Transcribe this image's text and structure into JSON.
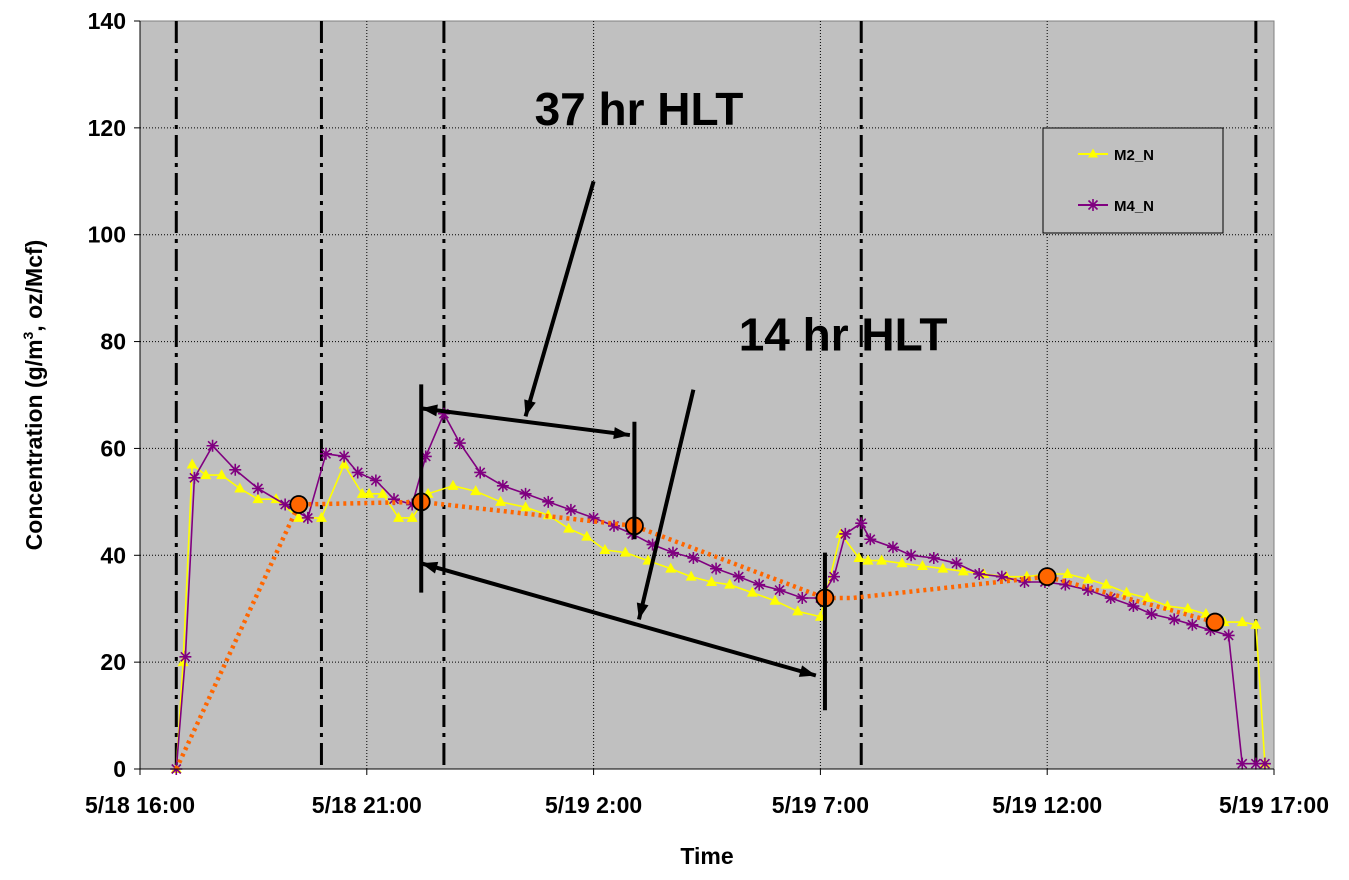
{
  "chart_data": {
    "type": "line",
    "title": "",
    "xlabel": "Time",
    "ylabel": "Concentration (g/m",
    "ylabel_sup": "3",
    "ylabel_tail": ", oz/Mcf)",
    "ylim": [
      0,
      140
    ],
    "y_ticks": [
      0,
      20,
      40,
      60,
      80,
      100,
      120,
      140
    ],
    "xlim": [
      0,
      25
    ],
    "x_ticks": [
      {
        "x": 0,
        "label": "5/18 16:00"
      },
      {
        "x": 5,
        "label": "5/18 21:00"
      },
      {
        "x": 10,
        "label": "5/19 2:00"
      },
      {
        "x": 15,
        "label": "5/19 7:00"
      },
      {
        "x": 20,
        "label": "5/19 12:00"
      },
      {
        "x": 25,
        "label": "5/19 17:00"
      }
    ],
    "grid": true,
    "legend_position": "top-right",
    "series": [
      {
        "name": "M2_N",
        "color": "#ffff00",
        "marker": "triangle",
        "x": [
          0.8,
          0.95,
          1.15,
          1.45,
          1.8,
          2.2,
          2.6,
          3.0,
          3.5,
          4.0,
          4.5,
          4.9,
          5.05,
          5.35,
          5.7,
          6.0,
          6.35,
          6.9,
          7.4,
          7.95,
          8.5,
          9.0,
          9.45,
          9.85,
          10.25,
          10.7,
          11.2,
          11.7,
          12.15,
          12.6,
          13.0,
          13.5,
          14.0,
          14.5,
          15.0,
          15.45,
          15.85,
          16.05,
          16.35,
          16.8,
          17.25,
          17.7,
          18.15,
          18.6,
          19.1,
          19.55,
          20.0,
          20.45,
          20.9,
          21.3,
          21.75,
          22.2,
          22.65,
          23.1,
          23.5,
          23.9,
          24.3,
          24.6,
          24.8
        ],
        "y": [
          0,
          20,
          57,
          55,
          55,
          52.5,
          50.5,
          50.5,
          47,
          47,
          57,
          51.5,
          51.5,
          51.5,
          47,
          47,
          51.5,
          53,
          52,
          50,
          49,
          47.5,
          45,
          43.5,
          41,
          40.5,
          39,
          37.5,
          36,
          35,
          34.5,
          33,
          31.5,
          29.5,
          28.5,
          44,
          39.5,
          39,
          39,
          38.5,
          38,
          37.5,
          37,
          36.5,
          36,
          36,
          36.5,
          36.5,
          35.5,
          34.5,
          33,
          32,
          30.5,
          30,
          29,
          27.5,
          27.5,
          27,
          1
        ]
      },
      {
        "name": "M4_N",
        "color": "#800080",
        "marker": "asterisk",
        "x": [
          0.8,
          1.0,
          1.2,
          1.6,
          2.1,
          2.6,
          3.2,
          3.7,
          4.1,
          4.5,
          4.8,
          5.2,
          5.6,
          6.0,
          6.3,
          6.7,
          7.05,
          7.5,
          8.0,
          8.5,
          9.0,
          9.5,
          10.0,
          10.45,
          10.85,
          11.3,
          11.75,
          12.2,
          12.7,
          13.2,
          13.65,
          14.1,
          14.6,
          15.0,
          15.3,
          15.55,
          15.9,
          16.1,
          16.6,
          17.0,
          17.5,
          18.0,
          18.5,
          19.0,
          19.5,
          19.95,
          20.4,
          20.9,
          21.4,
          21.9,
          22.3,
          22.8,
          23.2,
          23.6,
          24.0,
          24.3,
          24.6,
          24.8
        ],
        "y": [
          0,
          21,
          54.5,
          60.5,
          56,
          52.5,
          49.5,
          47,
          59,
          58.5,
          55.5,
          54,
          50.5,
          49.5,
          58.5,
          66.5,
          61,
          55.5,
          53,
          51.5,
          50,
          48.5,
          47,
          45.5,
          44,
          42,
          40.5,
          39.5,
          37.5,
          36,
          34.5,
          33.5,
          32,
          32,
          36,
          44,
          46,
          43,
          41.5,
          40,
          39.5,
          38.5,
          36.5,
          36,
          35,
          35,
          34.5,
          33.5,
          32,
          30.5,
          29,
          28,
          27,
          26,
          25,
          1,
          1,
          1
        ]
      },
      {
        "name": "",
        "color": "#ff6600",
        "marker": "circle",
        "style": "dotted",
        "x": [
          0.8,
          3.5,
          6.2,
          10.9,
          15.1,
          15.7,
          20.0,
          23.7
        ],
        "y": [
          0,
          49.5,
          50,
          45.5,
          32,
          32,
          36,
          27.5
        ],
        "markers_at": [
          1,
          2,
          3,
          4,
          6,
          7
        ]
      }
    ],
    "vlines_dashdot": [
      0.8,
      4.0,
      6.7,
      15.9,
      24.6
    ],
    "bars": [
      {
        "x": 6.2,
        "y1": 33,
        "y2": 72
      },
      {
        "x": 10.9,
        "y1": 43,
        "y2": 65
      },
      {
        "x": 15.1,
        "y1": 11,
        "y2": 40.5
      }
    ],
    "annotations": [
      {
        "text": "37 hr HLT",
        "x": 11.0,
        "y": 120.5
      },
      {
        "text": "14 hr HLT",
        "x": 15.5,
        "y": 78.3
      }
    ],
    "arrows": [
      {
        "from": [
          10.0,
          110
        ],
        "to": [
          8.5,
          66
        ],
        "heads": "end"
      },
      {
        "from": [
          6.2,
          67.5
        ],
        "to": [
          10.8,
          62.5
        ],
        "heads": "both"
      },
      {
        "from": [
          12.2,
          71
        ],
        "to": [
          11.0,
          28
        ],
        "heads": "end"
      },
      {
        "from": [
          6.2,
          38.5
        ],
        "to": [
          14.9,
          17.5
        ],
        "heads": "both"
      }
    ]
  }
}
